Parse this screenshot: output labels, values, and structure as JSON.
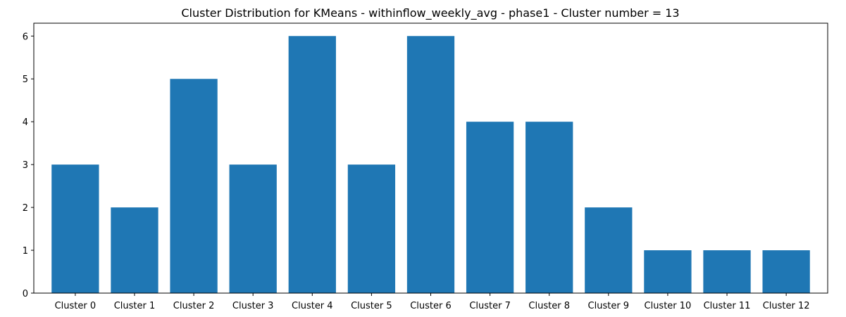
{
  "chart_data": {
    "type": "bar",
    "title": "Cluster Distribution for KMeans - withinflow_weekly_avg - phase1 - Cluster number = 13",
    "xlabel": "",
    "ylabel": "",
    "categories": [
      "Cluster 0",
      "Cluster 1",
      "Cluster 2",
      "Cluster 3",
      "Cluster 4",
      "Cluster 5",
      "Cluster 6",
      "Cluster 7",
      "Cluster 8",
      "Cluster 9",
      "Cluster 10",
      "Cluster 11",
      "Cluster 12"
    ],
    "values": [
      3,
      2,
      5,
      3,
      6,
      3,
      6,
      4,
      4,
      2,
      1,
      1,
      1
    ],
    "ylim": [
      0,
      6.3
    ],
    "yticks": [
      "0",
      "1",
      "2",
      "3",
      "4",
      "5",
      "6"
    ],
    "grid": false,
    "bar_color": "#1f77b4"
  }
}
